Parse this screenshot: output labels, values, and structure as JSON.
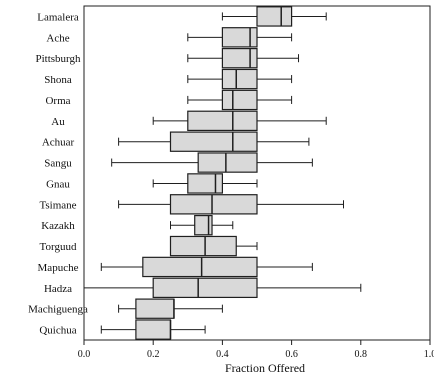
{
  "chart_data": {
    "type": "boxplot",
    "title": "",
    "xlabel": "Fraction Offered",
    "ylabel": "",
    "xlim": [
      0,
      1
    ],
    "xticks": [
      0,
      0.2,
      0.4,
      0.6,
      0.8,
      1
    ],
    "xtick_labels": [
      "0.0",
      "0.2",
      "0.4",
      "0.6",
      "0.8",
      "1.0"
    ],
    "grid": false,
    "categories": [
      "Lamalera",
      "Ache",
      "Pittsburgh",
      "Shona",
      "Orma",
      "Au",
      "Achuar",
      "Sangu",
      "Gnau",
      "Tsimane",
      "Kazakh",
      "Torguud",
      "Mapuche",
      "Hadza",
      "Machiguenga",
      "Quichua"
    ],
    "boxes": [
      {
        "category": "Lamalera",
        "min": 0.4,
        "q1": 0.5,
        "median": 0.57,
        "q3": 0.6,
        "max": 0.7
      },
      {
        "category": "Ache",
        "min": 0.3,
        "q1": 0.4,
        "median": 0.48,
        "q3": 0.5,
        "max": 0.6
      },
      {
        "category": "Pittsburgh",
        "min": 0.3,
        "q1": 0.4,
        "median": 0.48,
        "q3": 0.5,
        "max": 0.62
      },
      {
        "category": "Shona",
        "min": 0.3,
        "q1": 0.4,
        "median": 0.44,
        "q3": 0.5,
        "max": 0.6
      },
      {
        "category": "Orma",
        "min": 0.3,
        "q1": 0.4,
        "median": 0.43,
        "q3": 0.5,
        "max": 0.6
      },
      {
        "category": "Au",
        "min": 0.2,
        "q1": 0.3,
        "median": 0.43,
        "q3": 0.5,
        "max": 0.7
      },
      {
        "category": "Achuar",
        "min": 0.1,
        "q1": 0.25,
        "median": 0.43,
        "q3": 0.5,
        "max": 0.65
      },
      {
        "category": "Sangu",
        "min": 0.08,
        "q1": 0.33,
        "median": 0.41,
        "q3": 0.5,
        "max": 0.66
      },
      {
        "category": "Gnau",
        "min": 0.2,
        "q1": 0.3,
        "median": 0.38,
        "q3": 0.4,
        "max": 0.5
      },
      {
        "category": "Tsimane",
        "min": 0.1,
        "q1": 0.25,
        "median": 0.37,
        "q3": 0.5,
        "max": 0.75
      },
      {
        "category": "Kazakh",
        "min": 0.25,
        "q1": 0.32,
        "median": 0.36,
        "q3": 0.37,
        "max": 0.43
      },
      {
        "category": "Torguud",
        "min": 0.25,
        "q1": 0.25,
        "median": 0.35,
        "q3": 0.44,
        "max": 0.5
      },
      {
        "category": "Mapuche",
        "min": 0.05,
        "q1": 0.17,
        "median": 0.34,
        "q3": 0.5,
        "max": 0.66
      },
      {
        "category": "Hadza",
        "min": 0.0,
        "q1": 0.2,
        "median": 0.33,
        "q3": 0.5,
        "max": 0.8
      },
      {
        "category": "Machiguenga",
        "min": 0.1,
        "q1": 0.15,
        "median": 0.26,
        "q3": 0.26,
        "max": 0.4
      },
      {
        "category": "Quichua",
        "min": 0.05,
        "q1": 0.15,
        "median": 0.25,
        "q3": 0.25,
        "max": 0.35
      }
    ],
    "colors": {
      "box_fill": "#d9d9d9",
      "stroke": "#1f1f1f",
      "whisker": "#1f1f1f",
      "background": "#ffffff"
    }
  }
}
